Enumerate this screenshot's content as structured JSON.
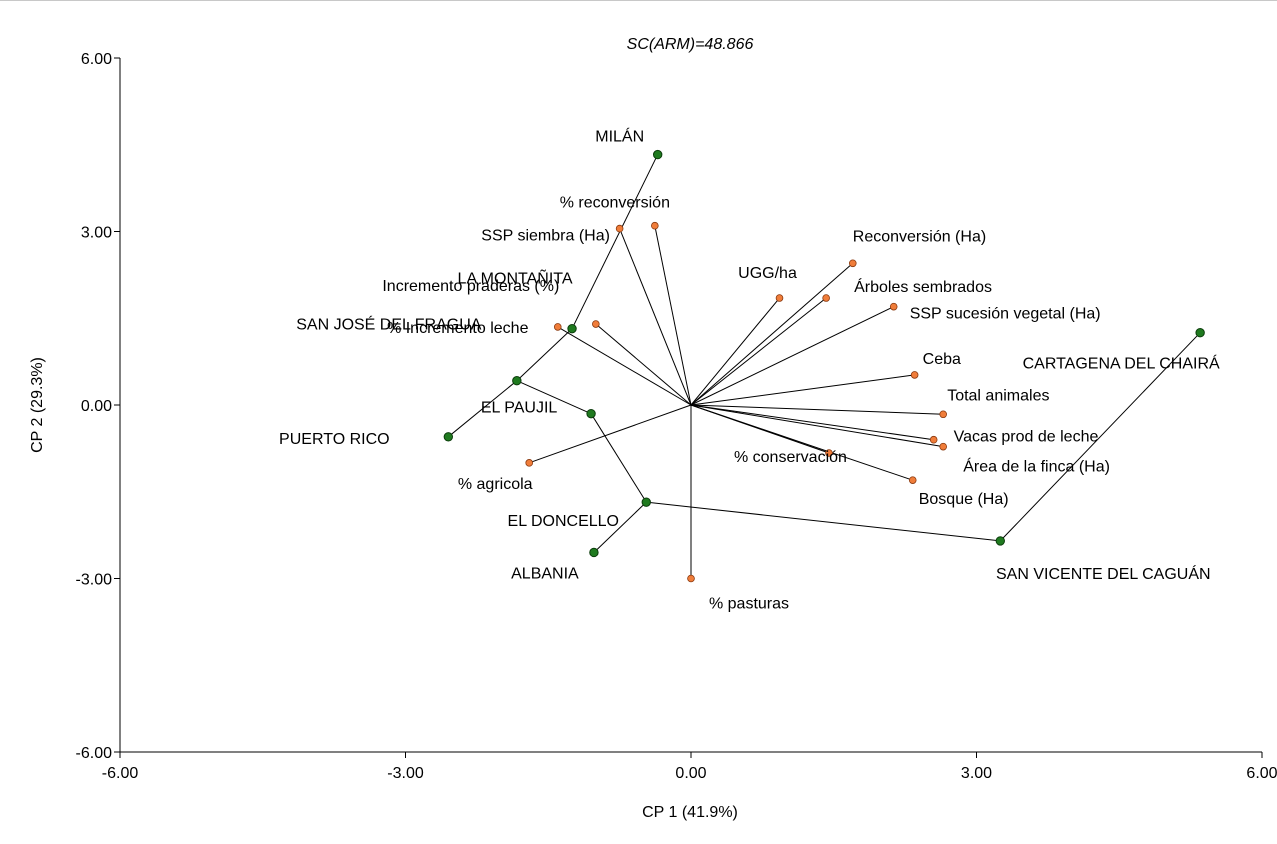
{
  "chart_data": {
    "type": "scatter",
    "subtype": "biplot",
    "title": "SC(ARM)=48.866",
    "xlabel": "CP 1 (41.9%)",
    "ylabel": "CP 2 (29.3%)",
    "xlim": [
      -6,
      6
    ],
    "ylim": [
      -6,
      6
    ],
    "xticks": [
      "-6.00",
      "-3.00",
      "0.00",
      "3.00",
      "6.00"
    ],
    "yticks": [
      "-6.00",
      "-3.00",
      "0.00",
      "3.00",
      "6.00"
    ],
    "grid": false,
    "legend": "none",
    "colors": {
      "sites": "#1f7a1f",
      "variables": "#f07d3a",
      "lines": "#000000"
    },
    "variables": [
      {
        "name": "% reconversión",
        "x": -0.38,
        "y": 3.1
      },
      {
        "name": "SSP siembra (Ha)",
        "x": -0.75,
        "y": 3.05
      },
      {
        "name": "Incremento praderas (%)",
        "x": -1.0,
        "y": 1.4
      },
      {
        "name": "% Incremento leche",
        "x": -1.4,
        "y": 1.35
      },
      {
        "name": "% agricola",
        "x": -1.7,
        "y": -1.0
      },
      {
        "name": "% pasturas",
        "x": 0.0,
        "y": -3.0
      },
      {
        "name": "UGG/ha",
        "x": 0.93,
        "y": 1.85
      },
      {
        "name": "Reconversión (Ha)",
        "x": 1.7,
        "y": 2.45
      },
      {
        "name": "Árboles sembrados",
        "x": 1.42,
        "y": 1.85
      },
      {
        "name": "SSP sucesión vegetal (Ha)",
        "x": 2.13,
        "y": 1.7
      },
      {
        "name": "Ceba",
        "x": 2.35,
        "y": 0.52
      },
      {
        "name": "Total animales",
        "x": 2.65,
        "y": -0.16
      },
      {
        "name": "Vacas prod de leche",
        "x": 2.55,
        "y": -0.6
      },
      {
        "name": "Área de la finca  (Ha)",
        "x": 2.65,
        "y": -0.72
      },
      {
        "name": "% conservación",
        "x": 1.45,
        "y": -0.83
      },
      {
        "name": "Bosque (Ha)",
        "x": 2.33,
        "y": -1.3
      }
    ],
    "sites": [
      {
        "name": "MILÁN",
        "x": -0.35,
        "y": 4.33
      },
      {
        "name": "LA MONTAÑITA",
        "x": -1.25,
        "y": 1.32
      },
      {
        "name": "SAN JOSÉ DEL FRAGUA",
        "x": -1.83,
        "y": 0.42
      },
      {
        "name": "PUERTO RICO",
        "x": -2.55,
        "y": -0.55
      },
      {
        "name": "EL PAUJIL",
        "x": -1.05,
        "y": -0.15
      },
      {
        "name": "EL DONCELLO",
        "x": -0.47,
        "y": -1.68
      },
      {
        "name": "ALBANIA",
        "x": -1.02,
        "y": -2.55
      },
      {
        "name": "CARTAGENA DEL CHAIRÁ",
        "x": 5.35,
        "y": 1.25
      },
      {
        "name": "SAN VICENTE DEL CAGUÁN",
        "x": 3.25,
        "y": -2.35
      }
    ],
    "connections": [
      [
        "MILÁN",
        "LA MONTAÑITA"
      ],
      [
        "LA MONTAÑITA",
        "SAN JOSÉ DEL FRAGUA"
      ],
      [
        "SAN JOSÉ DEL FRAGUA",
        "PUERTO RICO"
      ],
      [
        "SAN JOSÉ DEL FRAGUA",
        "EL PAUJIL"
      ],
      [
        "EL PAUJIL",
        "EL DONCELLO"
      ],
      [
        "EL DONCELLO",
        "ALBANIA"
      ],
      [
        "EL DONCELLO",
        "SAN VICENTE DEL CAGUÁN"
      ],
      [
        "SAN VICENTE DEL CAGUÁN",
        "CARTAGENA DEL CHAIRÁ"
      ]
    ]
  }
}
